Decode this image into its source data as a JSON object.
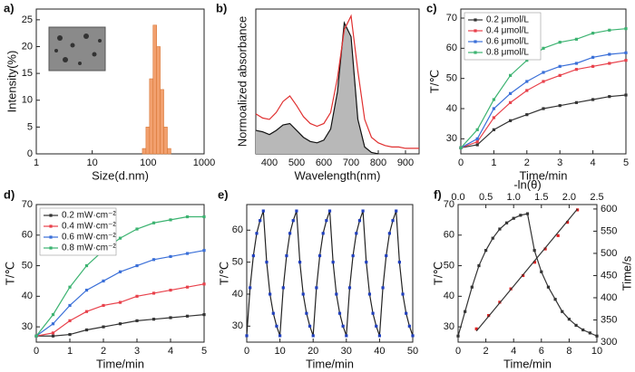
{
  "chart_data": [
    {
      "type": "histogram",
      "panel_label": "a)",
      "xlabel": "Size(d.nm)",
      "ylabel": "Intensity(%)",
      "xscale": "log",
      "xlim": [
        1,
        1000
      ],
      "xticks": [
        1,
        10,
        100,
        1000
      ],
      "ylim": [
        0,
        27
      ],
      "yticks": [
        0,
        5,
        10,
        15,
        20,
        25
      ],
      "bins": [
        78.8,
        91.3,
        105.7,
        122.4,
        141.8,
        164.2,
        190.1,
        220.2,
        255.0
      ],
      "values": [
        1,
        5,
        14,
        24,
        20,
        12,
        5,
        1
      ],
      "color": "#f2a06e"
    },
    {
      "type": "line",
      "panel_label": "b)",
      "xlabel": "Wavelength(nm)",
      "ylabel": "Normoalized absorbance",
      "xlim": [
        350,
        950
      ],
      "xticks": [
        400,
        500,
        600,
        700,
        800,
        900
      ],
      "ylim": [
        0,
        1.05
      ],
      "x": [
        350,
        375,
        400,
        425,
        450,
        475,
        500,
        525,
        550,
        575,
        600,
        625,
        650,
        675,
        700,
        725,
        750,
        775,
        800,
        825,
        850,
        875,
        900,
        925,
        950
      ],
      "series": [
        {
          "color": "#111111",
          "fill": "#b8b8b8",
          "values": [
            0.17,
            0.16,
            0.14,
            0.17,
            0.21,
            0.22,
            0.17,
            0.12,
            0.09,
            0.08,
            0.1,
            0.18,
            0.45,
            0.95,
            0.85,
            0.25,
            0.05,
            0.01,
            0,
            null,
            null,
            null,
            null,
            null,
            null
          ]
        },
        {
          "color": "#e03030",
          "values": [
            0.29,
            0.26,
            0.25,
            0.3,
            0.38,
            0.42,
            0.35,
            0.27,
            0.22,
            0.2,
            0.22,
            0.3,
            0.55,
            0.9,
            1.0,
            0.6,
            0.25,
            0.12,
            0.08,
            0.06,
            0.05,
            0.05,
            0.04,
            0.04,
            0.04
          ]
        }
      ]
    },
    {
      "type": "line",
      "panel_label": "c)",
      "xlabel": "Time/min",
      "ylabel": "T/℃",
      "legend": "upper left",
      "xlim": [
        0,
        5
      ],
      "xticks": [
        0,
        1,
        2,
        3,
        4,
        5
      ],
      "ylim": [
        25,
        73
      ],
      "yticks": [
        30,
        40,
        50,
        60,
        70
      ],
      "x": [
        0,
        0.5,
        1,
        1.5,
        2,
        2.5,
        3,
        3.5,
        4,
        4.5,
        5
      ],
      "series": [
        {
          "name": "0.2 μmol/L",
          "color": "#333333",
          "marker": true,
          "values": [
            27,
            28,
            33,
            36,
            38,
            40,
            41,
            42,
            43,
            44,
            44.5
          ]
        },
        {
          "name": "0.4 μmol/L",
          "color": "#e8414b",
          "marker": true,
          "values": [
            27,
            29,
            37,
            42,
            46,
            49,
            51,
            53,
            54,
            55,
            56
          ]
        },
        {
          "name": "0.6 μmol/L",
          "color": "#3a6fd8",
          "marker": true,
          "values": [
            27,
            30,
            40,
            45,
            49,
            52,
            54,
            55,
            57,
            58,
            58.5
          ]
        },
        {
          "name": "0.8 μmol/L",
          "color": "#3cb371",
          "marker": true,
          "values": [
            27,
            33,
            43,
            51,
            56,
            60,
            62,
            63,
            65,
            66,
            66.5
          ]
        }
      ]
    },
    {
      "type": "line",
      "panel_label": "d)",
      "xlabel": "Time/min",
      "ylabel": "T/℃",
      "legend": "upper left",
      "xlim": [
        0,
        5
      ],
      "xticks": [
        0,
        1,
        2,
        3,
        4,
        5
      ],
      "ylim": [
        25,
        70
      ],
      "yticks": [
        30,
        40,
        50,
        60,
        70
      ],
      "x": [
        0,
        0.5,
        1,
        1.5,
        2,
        2.5,
        3,
        3.5,
        4,
        4.5,
        5
      ],
      "series": [
        {
          "name": "0.2 mW·cm⁻²",
          "color": "#333333",
          "marker": true,
          "values": [
            27,
            27,
            27.5,
            29,
            30,
            31,
            32,
            32.5,
            33,
            33.5,
            34
          ]
        },
        {
          "name": "0.4 mW·cm⁻²",
          "color": "#e8414b",
          "marker": true,
          "values": [
            27,
            28,
            32,
            35,
            37,
            38,
            40,
            41,
            42,
            43,
            44
          ]
        },
        {
          "name": "0.6 mW·cm⁻²",
          "color": "#3a6fd8",
          "marker": true,
          "values": [
            27,
            31,
            37,
            42,
            45,
            48,
            50,
            52,
            53,
            54,
            55
          ]
        },
        {
          "name": "0.8 mW·cm⁻²",
          "color": "#3cb371",
          "marker": true,
          "values": [
            27,
            34,
            43,
            50,
            55,
            59,
            62,
            64,
            65,
            66,
            66
          ]
        }
      ]
    },
    {
      "type": "line",
      "panel_label": "e)",
      "xlabel": "Time/min",
      "ylabel": "T/℃",
      "xlim": [
        0,
        50
      ],
      "xticks": [
        0,
        10,
        20,
        30,
        40,
        50
      ],
      "ylim": [
        25,
        68
      ],
      "yticks": [
        30,
        40,
        50,
        60
      ],
      "x": [
        0,
        1,
        2,
        3,
        4,
        5,
        6,
        7,
        8,
        9,
        10,
        11,
        12,
        13,
        14,
        15,
        16,
        17,
        18,
        19,
        20,
        21,
        22,
        23,
        24,
        25,
        26,
        27,
        28,
        29,
        30,
        31,
        32,
        33,
        34,
        35,
        36,
        37,
        38,
        39,
        40,
        41,
        42,
        43,
        44,
        45,
        46,
        47,
        48,
        49,
        50
      ],
      "series": [
        {
          "color": "#222222",
          "marker": true,
          "marker_color": "#1f3fbf",
          "values": [
            27,
            42,
            52,
            59,
            63,
            66,
            50,
            40,
            34,
            30,
            27,
            42,
            52,
            59,
            63,
            66,
            50,
            40,
            34,
            30,
            27,
            42,
            52,
            59,
            63,
            66,
            50,
            40,
            34,
            30,
            27,
            42,
            52,
            59,
            63,
            66,
            50,
            40,
            34,
            30,
            27,
            42,
            52,
            59,
            63,
            66,
            50,
            40,
            34,
            30,
            27
          ]
        }
      ]
    },
    {
      "type": "line",
      "panel_label": "f)",
      "xlabel": "Time/min",
      "ylabel": "T/℃",
      "x2label": "-ln(θ)",
      "y2label": "Time/s",
      "xlim": [
        0,
        10
      ],
      "xticks": [
        0,
        2,
        4,
        6,
        8,
        10
      ],
      "ylim": [
        25,
        70
      ],
      "yticks": [
        30,
        40,
        50,
        60,
        70
      ],
      "x2lim": [
        0,
        2.5
      ],
      "x2ticks": [
        {
          "value": 0,
          "label": "0.0"
        },
        0.5,
        {
          "value": 1,
          "label": "1.0"
        },
        1.5,
        {
          "value": 2,
          "label": "2.0"
        },
        2.5
      ],
      "y2lim": [
        300,
        610
      ],
      "y2ticks": [
        300,
        350,
        400,
        450,
        500,
        550,
        600
      ],
      "series": [
        {
          "color": "#333333",
          "marker": true,
          "x": [
            0,
            0.5,
            1,
            1.5,
            2,
            2.5,
            3,
            3.5,
            4,
            4.5,
            5,
            5.5,
            6,
            6.5,
            7,
            7.5,
            8,
            8.5,
            9,
            9.5,
            10
          ],
          "values": [
            27,
            35,
            43,
            50,
            55,
            59,
            62,
            64,
            65.5,
            66.5,
            67,
            55,
            48,
            43,
            39,
            35,
            32.5,
            30.5,
            29,
            28,
            27
          ]
        },
        {
          "color": "#e02020",
          "mode": "markers",
          "axis": "y2",
          "xaxis": "x2",
          "x": [
            0.33,
            0.55,
            0.75,
            0.95,
            1.17,
            1.38,
            1.57,
            1.8,
            1.97,
            2.15
          ],
          "values": [
            330,
            360,
            390,
            420,
            450,
            480,
            510,
            540,
            570,
            598
          ]
        },
        {
          "color": "#333333",
          "axis": "y2",
          "xaxis": "x2",
          "x": [
            0.33,
            2.15
          ],
          "values": [
            325,
            600
          ]
        }
      ]
    }
  ]
}
